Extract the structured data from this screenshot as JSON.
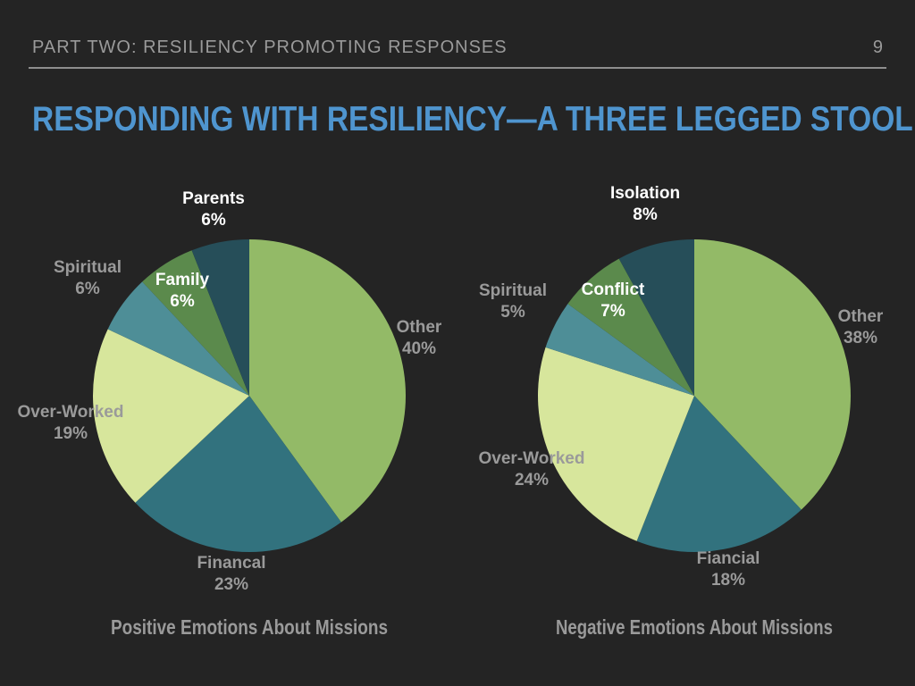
{
  "header": {
    "section": "PART TWO: RESILIENCY PROMOTING RESPONSES",
    "page_number": "9"
  },
  "title": "RESPONDING WITH RESILIENCY—A THREE LEGGED STOOL",
  "chart_data": [
    {
      "type": "pie",
      "title": "Positive Emotions About Missions",
      "start_angle_deg": 0,
      "direction": "clockwise",
      "slices": [
        {
          "label": "Other",
          "value": 40,
          "display": "40%",
          "color": "#93ba67",
          "label_color": "#9a9a9a"
        },
        {
          "label": "Financal",
          "value": 23,
          "display": "23%",
          "color": "#32727e",
          "label_color": "#9a9a9a"
        },
        {
          "label": "Over-Worked",
          "value": 19,
          "display": "19%",
          "color": "#d7e69c",
          "label_color": "#9a9a9a"
        },
        {
          "label": "Spiritual",
          "value": 6,
          "display": "6%",
          "color": "#4e8e97",
          "label_color": "#9a9a9a"
        },
        {
          "label": "Family",
          "value": 6,
          "display": "6%",
          "color": "#5b8a4c",
          "label_color": "#ffffff"
        },
        {
          "label": "Parents",
          "value": 6,
          "display": "6%",
          "color": "#264e59",
          "label_color": "#ffffff"
        }
      ]
    },
    {
      "type": "pie",
      "title": "Negative Emotions About Missions",
      "start_angle_deg": 0,
      "direction": "clockwise",
      "slices": [
        {
          "label": "Other",
          "value": 38,
          "display": "38%",
          "color": "#93ba67",
          "label_color": "#9a9a9a"
        },
        {
          "label": "Fiancial",
          "value": 18,
          "display": "18%",
          "color": "#32727e",
          "label_color": "#9a9a9a"
        },
        {
          "label": "Over-Worked",
          "value": 24,
          "display": "24%",
          "color": "#d7e69c",
          "label_color": "#9a9a9a"
        },
        {
          "label": "Spiritual",
          "value": 5,
          "display": "5%",
          "color": "#4e8e97",
          "label_color": "#9a9a9a"
        },
        {
          "label": "Conflict",
          "value": 7,
          "display": "7%",
          "color": "#5b8a4c",
          "label_color": "#ffffff"
        },
        {
          "label": "Isolation",
          "value": 8,
          "display": "8%",
          "color": "#264e59",
          "label_color": "#ffffff"
        }
      ]
    }
  ]
}
